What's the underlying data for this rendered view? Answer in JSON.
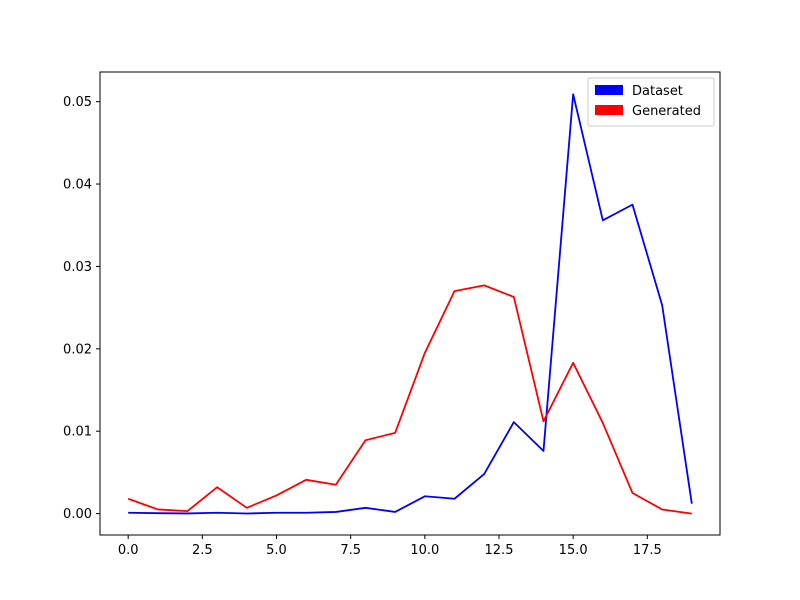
{
  "chart_data": {
    "type": "line",
    "title": "",
    "xlabel": "",
    "ylabel": "",
    "xlim": [
      -0.95,
      19.95
    ],
    "ylim": [
      -0.0026,
      0.0536
    ],
    "xticks": [
      0.0,
      2.5,
      5.0,
      7.5,
      10.0,
      12.5,
      15.0,
      17.5
    ],
    "xtick_labels": [
      "0.0",
      "2.5",
      "5.0",
      "7.5",
      "10.0",
      "12.5",
      "15.0",
      "17.5"
    ],
    "yticks": [
      0.0,
      0.01,
      0.02,
      0.03,
      0.04,
      0.05
    ],
    "ytick_labels": [
      "0.00",
      "0.01",
      "0.02",
      "0.03",
      "0.04",
      "0.05"
    ],
    "grid": false,
    "legend_position": "upper right",
    "x": [
      0,
      1,
      2,
      3,
      4,
      5,
      6,
      7,
      8,
      9,
      10,
      11,
      12,
      13,
      14,
      15,
      16,
      17,
      18,
      19
    ],
    "series": [
      {
        "name": "Dataset",
        "color": "#0000ff",
        "values": [
          0.0001,
          5e-05,
          2e-05,
          0.0001,
          1e-05,
          0.0001,
          0.0001,
          0.0002,
          0.0007,
          0.0002,
          0.0021,
          0.0018,
          0.0048,
          0.0111,
          0.0076,
          0.0509,
          0.0356,
          0.0375,
          0.0253,
          0.0012
        ]
      },
      {
        "name": "Generated",
        "color": "#ff0000",
        "values": [
          0.0018,
          0.0005,
          0.0003,
          0.0032,
          0.0007,
          0.0022,
          0.0041,
          0.0035,
          0.0089,
          0.0098,
          0.0195,
          0.027,
          0.0277,
          0.0263,
          0.0112,
          0.0183,
          0.011,
          0.0025,
          0.0005,
          0.0
        ]
      }
    ]
  }
}
